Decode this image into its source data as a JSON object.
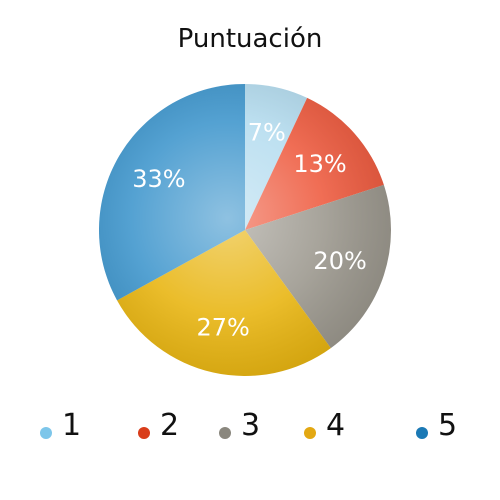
{
  "chart_data": {
    "type": "pie",
    "title": "Puntuación",
    "categories": [
      "1",
      "2",
      "3",
      "4",
      "5"
    ],
    "values": [
      7,
      13,
      20,
      27,
      33
    ],
    "data_labels": [
      "7%",
      "13%",
      "20%",
      "27%",
      "33%"
    ],
    "colors": [
      "#b4dcef",
      "#ee5a3e",
      "#9b978d",
      "#e8b40e",
      "#3d95cc"
    ],
    "legend_colors": [
      "#7dc6ea",
      "#d93d1a",
      "#8a877e",
      "#e3a812",
      "#1b79b5"
    ],
    "legend_position": "bottom",
    "label_color": "#ffffff"
  }
}
